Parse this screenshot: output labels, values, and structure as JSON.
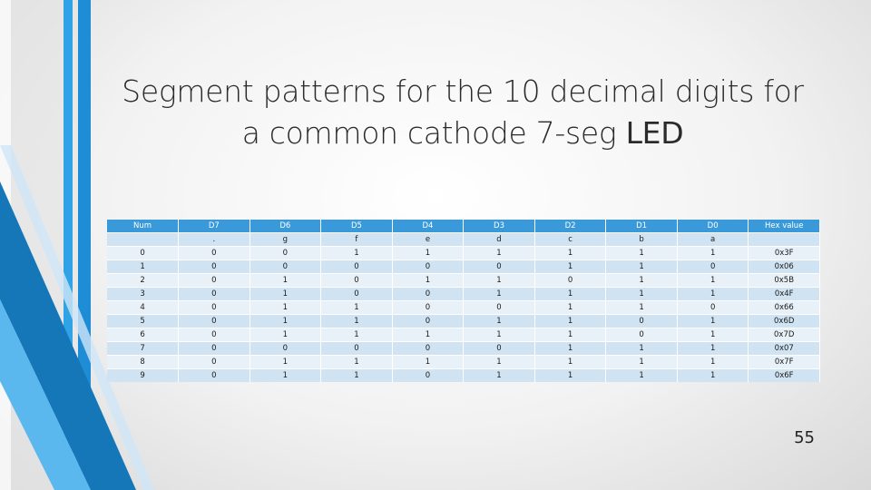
{
  "slide": {
    "title_line1": "Segment patterns for the 10 decimal digits for",
    "title_line2_prefix": "a common cathode 7-seg ",
    "title_line2_bold": "LED",
    "page_number": "55",
    "accent_colors": [
      "#1f8dd6",
      "#2fa3e6",
      "#1576b8",
      "#5bb8ee"
    ]
  },
  "table": {
    "headers": [
      "Num",
      "D7",
      "D6",
      "D5",
      "D4",
      "D3",
      "D2",
      "D1",
      "D0",
      "Hex value"
    ],
    "rows": [
      [
        "",
        ".",
        "g",
        "f",
        "e",
        "d",
        "c",
        "b",
        "a",
        ""
      ],
      [
        "0",
        "0",
        "0",
        "1",
        "1",
        "1",
        "1",
        "1",
        "1",
        "0x3F"
      ],
      [
        "1",
        "0",
        "0",
        "0",
        "0",
        "0",
        "1",
        "1",
        "0",
        "0x06"
      ],
      [
        "2",
        "0",
        "1",
        "0",
        "1",
        "1",
        "0",
        "1",
        "1",
        "0x5B"
      ],
      [
        "3",
        "0",
        "1",
        "0",
        "0",
        "1",
        "1",
        "1",
        "1",
        "0x4F"
      ],
      [
        "4",
        "0",
        "1",
        "1",
        "0",
        "0",
        "1",
        "1",
        "0",
        "0x66"
      ],
      [
        "5",
        "0",
        "1",
        "1",
        "0",
        "1",
        "1",
        "0",
        "1",
        "0x6D"
      ],
      [
        "6",
        "0",
        "1",
        "1",
        "1",
        "1",
        "1",
        "0",
        "1",
        "0x7D"
      ],
      [
        "7",
        "0",
        "0",
        "0",
        "0",
        "0",
        "1",
        "1",
        "1",
        "0x07"
      ],
      [
        "8",
        "0",
        "1",
        "1",
        "1",
        "1",
        "1",
        "1",
        "1",
        "0x7F"
      ],
      [
        "9",
        "0",
        "1",
        "1",
        "0",
        "1",
        "1",
        "1",
        "1",
        "0x6F"
      ]
    ]
  }
}
